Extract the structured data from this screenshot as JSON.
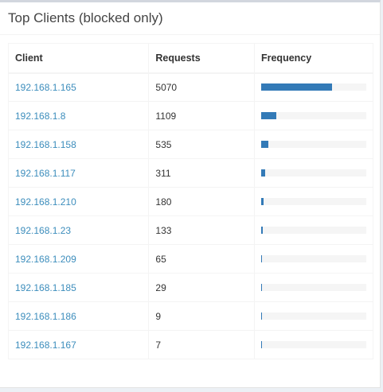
{
  "title": "Top Clients (blocked only)",
  "columns": [
    "Client",
    "Requests",
    "Frequency"
  ],
  "colors": {
    "link": "#3c8dbc",
    "bar": "#337ab7",
    "track": "#f5f5f5"
  },
  "rows": [
    {
      "client": "192.168.1.165",
      "requests": "5070",
      "frequency_pct": 67.3
    },
    {
      "client": "192.168.1.8",
      "requests": "1109",
      "frequency_pct": 14.7
    },
    {
      "client": "192.168.1.158",
      "requests": "535",
      "frequency_pct": 7.1
    },
    {
      "client": "192.168.1.117",
      "requests": "311",
      "frequency_pct": 4.1
    },
    {
      "client": "192.168.1.210",
      "requests": "180",
      "frequency_pct": 2.4
    },
    {
      "client": "192.168.1.23",
      "requests": "133",
      "frequency_pct": 1.8
    },
    {
      "client": "192.168.1.209",
      "requests": "65",
      "frequency_pct": 0.9
    },
    {
      "client": "192.168.1.185",
      "requests": "29",
      "frequency_pct": 0.4
    },
    {
      "client": "192.168.1.186",
      "requests": "9",
      "frequency_pct": 0.1
    },
    {
      "client": "192.168.1.167",
      "requests": "7",
      "frequency_pct": 0.1
    }
  ]
}
